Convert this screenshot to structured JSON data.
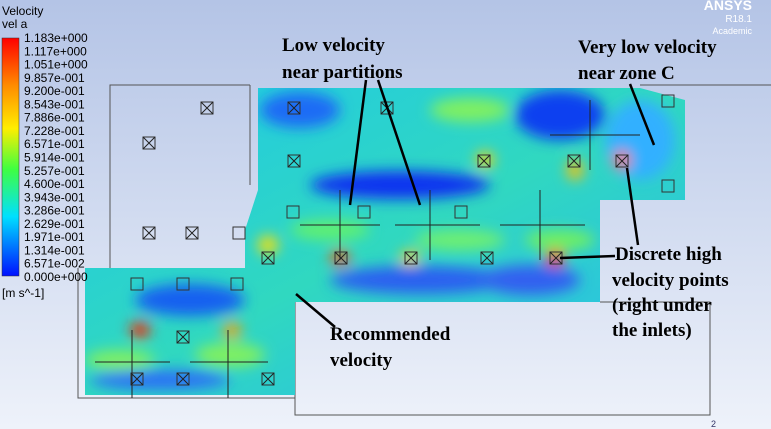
{
  "legend": {
    "title": "Velocity",
    "variable": "vel a",
    "labels": [
      "1.183e+000",
      "1.117e+000",
      "1.051e+000",
      "9.857e-001",
      "9.200e-001",
      "8.543e-001",
      "7.886e-001",
      "7.228e-001",
      "6.571e-001",
      "5.914e-001",
      "5.257e-001",
      "4.600e-001",
      "3.943e-001",
      "3.286e-001",
      "2.629e-001",
      "1.971e-001",
      "1.314e-001",
      "6.571e-002",
      "0.000e+000"
    ],
    "units": "[m s^-1]"
  },
  "logo": {
    "name": "ANSYS",
    "version": "R18.1",
    "edition": "Academic"
  },
  "annotations": [
    {
      "lines": [
        "Low velocity",
        "near partitions"
      ]
    },
    {
      "lines": [
        "Very low velocity",
        "near zone C"
      ]
    },
    {
      "lines": [
        "Discrete high",
        "velocity points",
        "(right under",
        "the inlets)"
      ]
    },
    {
      "lines": [
        "Recommended",
        "velocity"
      ]
    }
  ],
  "page_number": "2"
}
